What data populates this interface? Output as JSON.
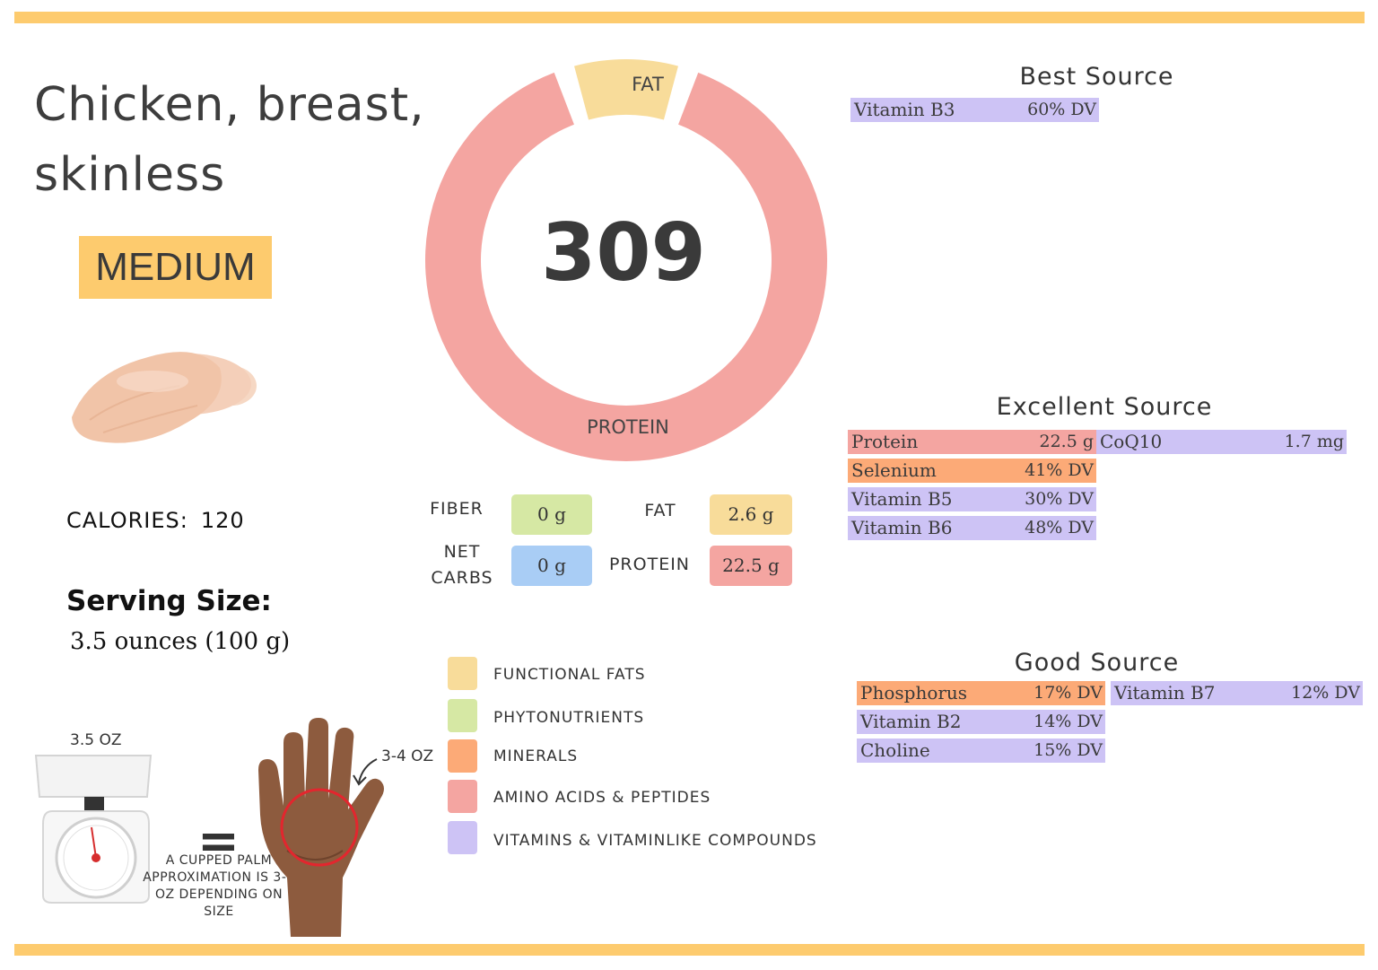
{
  "title": "Chicken, breast, skinless",
  "level": "MEDIUM",
  "calories": {
    "label": "CALORIES:",
    "value": "120"
  },
  "serving": {
    "title": "Serving Size:",
    "value": "3.5 ounces (100 g)"
  },
  "donut": {
    "center": "309",
    "fat_label": "FAT",
    "protein_label": "PROTEIN",
    "fat_fraction": 0.1,
    "colors": {
      "fat": "#f8dc9a",
      "protein": "#f4a5a1"
    }
  },
  "macros": {
    "fiber": {
      "label": "FIBER",
      "value": "0 g",
      "color": "#d6e8a4"
    },
    "fat": {
      "label": "FAT",
      "value": "2.6 g",
      "color": "#f8dc9a"
    },
    "net_carbs": {
      "label_line1": "NET",
      "label_line2": "CARBS",
      "value": "0 g",
      "color": "#a9cdf5"
    },
    "protein": {
      "label": "PROTEIN",
      "value": "22.5 g",
      "color": "#f4a5a1"
    }
  },
  "legend": [
    {
      "label": "FUNCTIONAL  FATS",
      "color": "#f8dc9a"
    },
    {
      "label": "PHYTONUTRIENTS",
      "color": "#d6e8a4"
    },
    {
      "label": "MINERALS",
      "color": "#fcaa77"
    },
    {
      "label": "AMINO ACIDS & PEPTIDES",
      "color": "#f4a5a1"
    },
    {
      "label": "VITAMINS & VITAMINLIKE COMPOUNDS",
      "color": "#cdc3f5"
    }
  ],
  "best_source": {
    "title": "Best Source",
    "items": [
      {
        "name": "Vitamin B3",
        "value": "60% DV",
        "color": "#cdc3f5"
      }
    ]
  },
  "excellent_source": {
    "title": "Excellent Source",
    "items": [
      {
        "name": "Protein",
        "value": "22.5 g",
        "color": "#f4a5a1"
      },
      {
        "name": "CoQ10",
        "value": "1.7 mg",
        "color": "#cdc3f5"
      },
      {
        "name": "Selenium",
        "value": "41% DV",
        "color": "#fcaa77"
      },
      {
        "name": "Vitamin B5",
        "value": "30% DV",
        "color": "#cdc3f5"
      },
      {
        "name": "Vitamin B6",
        "value": "48% DV",
        "color": "#cdc3f5"
      }
    ]
  },
  "good_source": {
    "title": "Good Source",
    "items": [
      {
        "name": "Phosphorus",
        "value": "17% DV",
        "color": "#fcaa77"
      },
      {
        "name": "Vitamin B7",
        "value": "12% DV",
        "color": "#cdc3f5"
      },
      {
        "name": "Vitamin B2",
        "value": "14% DV",
        "color": "#cdc3f5"
      },
      {
        "name": "Choline",
        "value": "15% DV",
        "color": "#cdc3f5"
      }
    ]
  },
  "portion": {
    "scale_label": "3.5 OZ",
    "equals": "=",
    "palm_note": "A CUPPED PALM APPROXIMATION IS 3-4 OZ DEPENDING ON SIZE",
    "palm_label": "3-4 OZ"
  },
  "stripe_color": "#fdcb6e"
}
